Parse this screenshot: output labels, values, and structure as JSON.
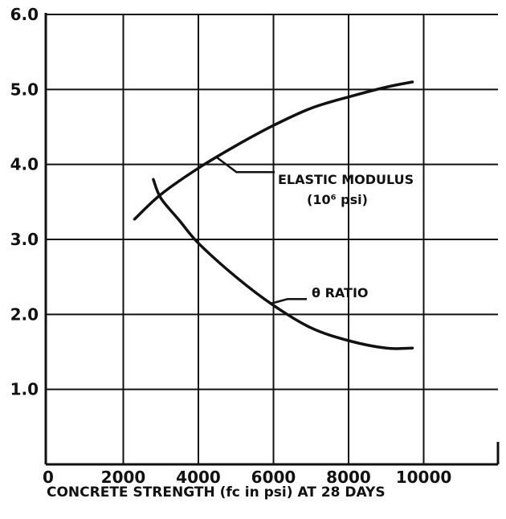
{
  "chart_data": {
    "type": "line",
    "title": "",
    "xlabel": "CONCRETE STRENGTH (fc in psi) AT 28 DAYS",
    "ylabel": "",
    "xlim": [
      0,
      12000
    ],
    "ylim": [
      0,
      6.0
    ],
    "grid": true,
    "x_ticks": [
      0,
      2000,
      4000,
      6000,
      8000,
      10000
    ],
    "x_tick_labels": [
      "0",
      "2000",
      "4000",
      "6000",
      "8000",
      "10000"
    ],
    "y_ticks": [
      1.0,
      2.0,
      3.0,
      4.0,
      5.0,
      6.0
    ],
    "y_tick_labels": [
      "1.0",
      "2.0",
      "3.0",
      "4.0",
      "5.0",
      "6.0"
    ],
    "series": [
      {
        "name": "ELASTIC MODULUS",
        "unit_label": "(10⁶ psi)",
        "x": [
          2300,
          3000,
          4000,
          5000,
          6000,
          7000,
          8000,
          9000,
          9700
        ],
        "y": [
          3.27,
          3.6,
          3.95,
          4.25,
          4.52,
          4.75,
          4.9,
          5.03,
          5.1
        ]
      },
      {
        "name": "θ RATIO",
        "x": [
          2800,
          3000,
          3500,
          4000,
          5000,
          6000,
          7000,
          8000,
          9000,
          9700
        ],
        "y": [
          3.8,
          3.55,
          3.25,
          2.95,
          2.5,
          2.12,
          1.82,
          1.65,
          1.55,
          1.55
        ]
      }
    ]
  }
}
